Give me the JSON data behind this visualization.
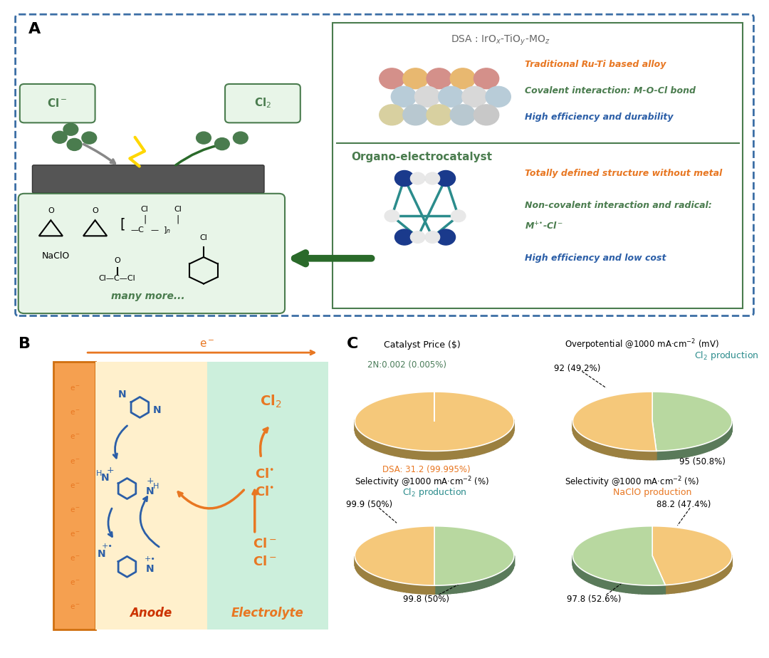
{
  "panel_A": {
    "color_orange": "#E87722",
    "color_green": "#4A7C4E",
    "color_blue": "#2B5EA7",
    "color_dkgreen": "#3A6E3A",
    "border_color": "#3B6EA5"
  },
  "panel_B": {
    "color_orange": "#E87722",
    "color_blue": "#2B5EA7",
    "color_red": "#CC3300",
    "anode_bg": "#FFF0CC",
    "electrolyte_bg": "#CCEFDC",
    "electrode_color": "#F5A050"
  },
  "panel_C": {
    "pie1_values": [
      99.995,
      0.005
    ],
    "pie1_colors": [
      "#F5C87A",
      "#B8D8A0"
    ],
    "pie1_shadow": [
      "#9B8040",
      "#5A7A5A"
    ],
    "pie2_values": [
      49.2,
      50.8
    ],
    "pie2_colors": [
      "#B8D8A0",
      "#F5C87A"
    ],
    "pie2_shadow": [
      "#5A7A5A",
      "#9B8040"
    ],
    "pie3_values": [
      50.0,
      50.0
    ],
    "pie3_colors": [
      "#B8D8A0",
      "#F5C87A"
    ],
    "pie3_shadow": [
      "#5A7A5A",
      "#9B8040"
    ],
    "pie4_values": [
      47.4,
      52.6
    ],
    "pie4_colors": [
      "#F5C87A",
      "#B8D8A0"
    ],
    "pie4_shadow": [
      "#9B8040",
      "#5A7A5A"
    ],
    "color_orange": "#E87722",
    "color_green": "#4A7C59",
    "color_teal": "#2B8C8C"
  },
  "background_color": "#FFFFFF",
  "border_color": "#3B6EA5"
}
